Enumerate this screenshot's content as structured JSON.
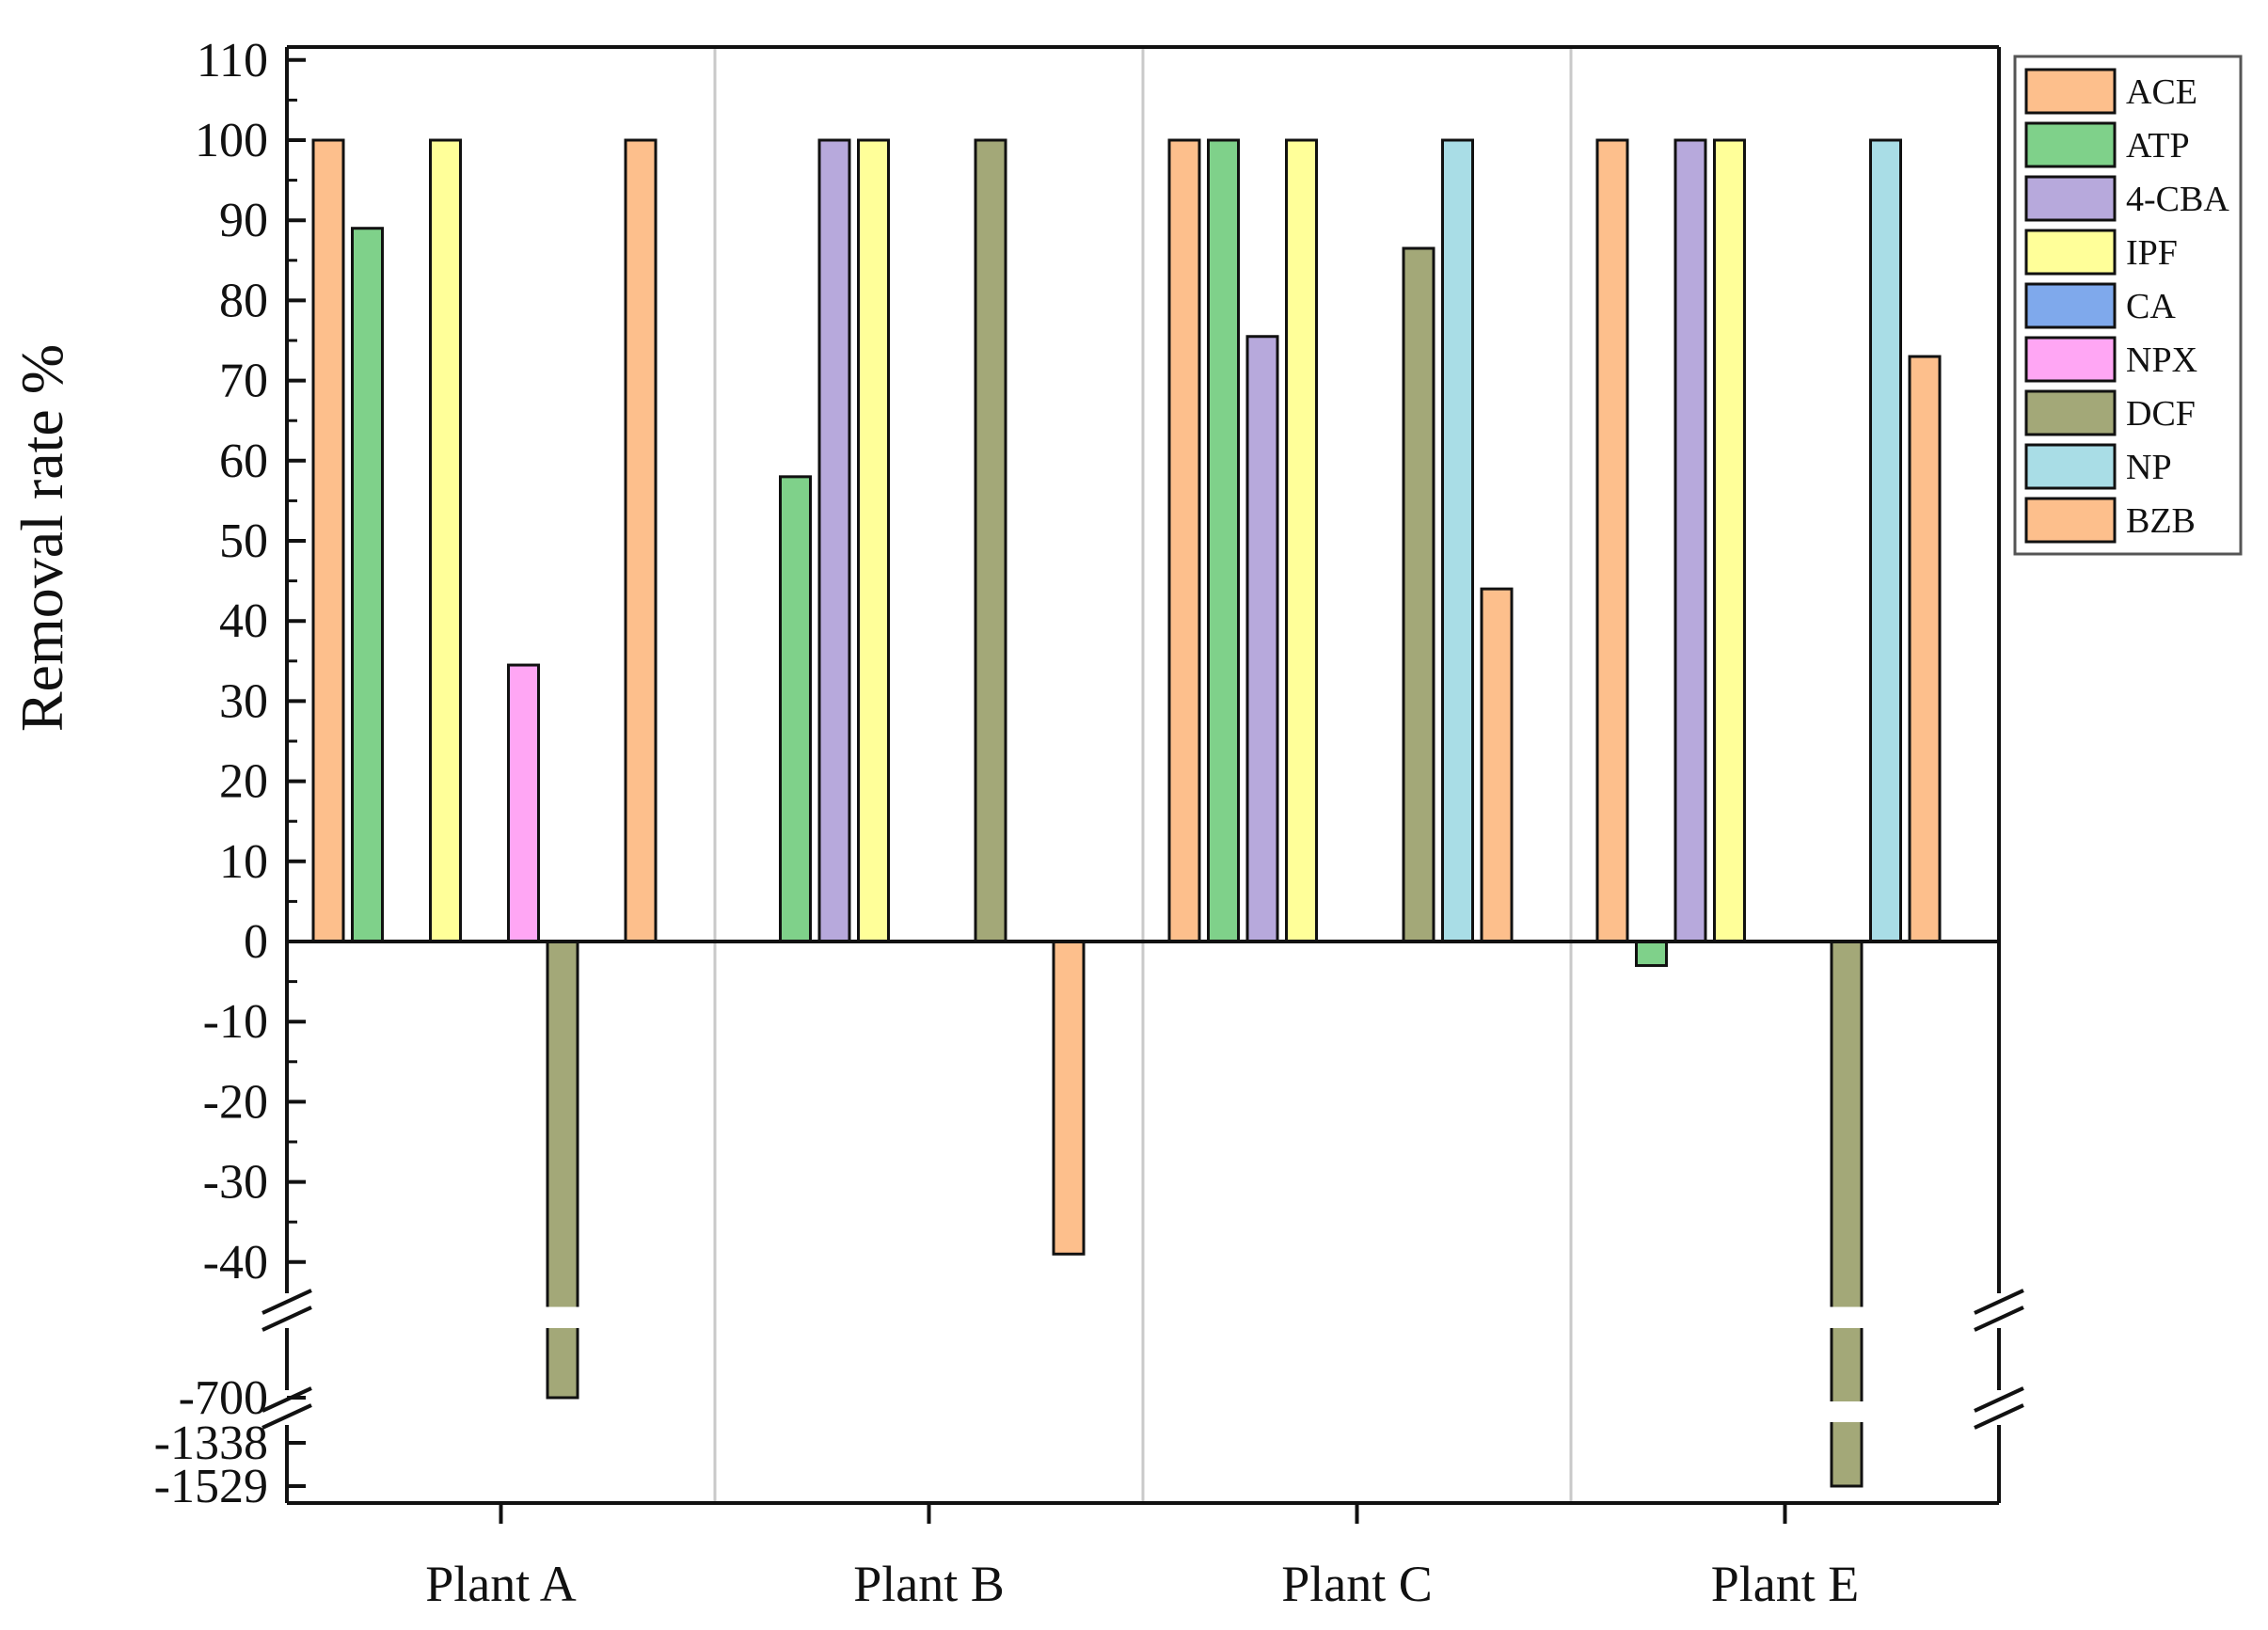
{
  "chart_data": {
    "type": "bar",
    "title": "",
    "xlabel": "",
    "ylabel": "Removal rate %",
    "categories": [
      "Plant A",
      "Plant B",
      "Plant C",
      "Plant E"
    ],
    "y_ticks": [
      "110",
      "100",
      "90",
      "80",
      "70",
      "60",
      "50",
      "40",
      "30",
      "20",
      "10",
      "0",
      "-10",
      "-20",
      "-30",
      "-40"
    ],
    "y_break_ticks": [
      "-700",
      "-1338",
      "-1529"
    ],
    "ylim": [
      -1529,
      110
    ],
    "axis_break": {
      "from": -45,
      "to": -700,
      "second_from": -700,
      "second_to": -1338
    },
    "grid": false,
    "legend_position": "top-right",
    "series": [
      {
        "name": "ACE",
        "color": "#FDBF8C",
        "values": [
          100,
          null,
          100,
          100
        ]
      },
      {
        "name": "ATP",
        "color": "#7FD18A",
        "values": [
          89,
          58,
          100,
          -3
        ]
      },
      {
        "name": "4-CBA",
        "color": "#B7A9DC",
        "values": [
          null,
          100,
          75.5,
          100
        ]
      },
      {
        "name": "IPF",
        "color": "#FFFF99",
        "values": [
          100,
          100,
          100,
          100
        ]
      },
      {
        "name": "CA",
        "color": "#7FA9EC",
        "values": [
          null,
          null,
          null,
          null
        ]
      },
      {
        "name": "NPX",
        "color": "#FFA6F4",
        "values": [
          34.5,
          null,
          null,
          null
        ]
      },
      {
        "name": "DCF",
        "color": "#A3A878",
        "values": [
          -700,
          100,
          86.5,
          -1529
        ]
      },
      {
        "name": "NP",
        "color": "#A9DDE6",
        "values": [
          null,
          null,
          100,
          100
        ]
      },
      {
        "name": "BZB",
        "color": "#FDBF8C",
        "values": [
          100,
          -39,
          44,
          73
        ]
      }
    ]
  }
}
